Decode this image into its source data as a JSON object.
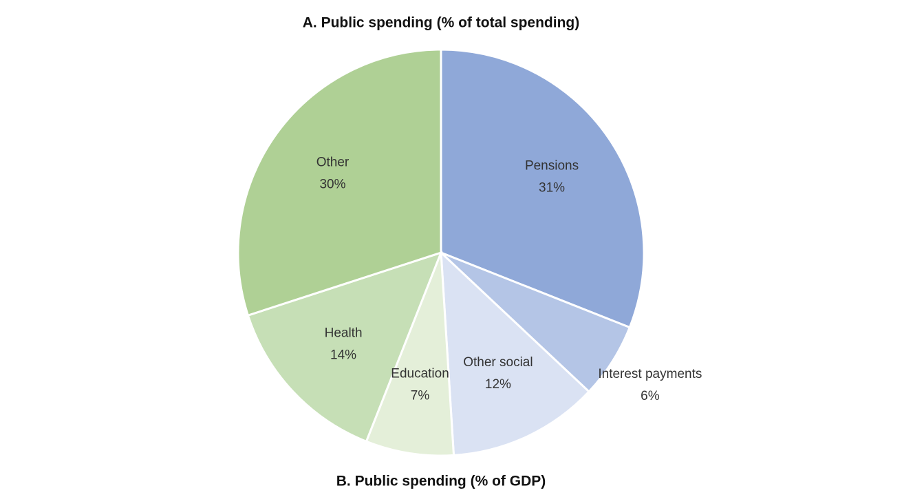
{
  "chart_data": {
    "type": "pie",
    "title": "A. Public spending (% of total spending)",
    "caption": "B. Public spending (% of GDP)",
    "categories": [
      "Pensions",
      "Interest payments",
      "Other social",
      "Education",
      "Health",
      "Other"
    ],
    "values": [
      31,
      6,
      12,
      7,
      14,
      30
    ],
    "value_labels": [
      "31%",
      "6%",
      "12%",
      "7%",
      "14%",
      "30%"
    ],
    "colors": [
      "#8fa8d8",
      "#b4c5e6",
      "#dae2f3",
      "#e4efd9",
      "#c6dfb6",
      "#afd095"
    ]
  }
}
